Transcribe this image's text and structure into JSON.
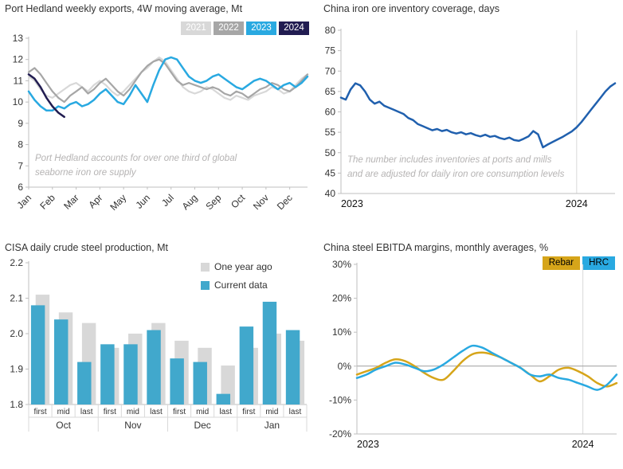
{
  "colors": {
    "blue": "#29a9e1",
    "navy": "#211c51",
    "gray_2022": "#a6a6a6",
    "light_gray": "#d8d8d8",
    "inventory_blue": "#2060ae",
    "bar_blue": "#41a8cc",
    "gold": "#d6a51a",
    "axis": "#bfbfbf",
    "grid": "#d9d9d9",
    "tick_text": "#333333"
  },
  "panels": [
    {
      "title": "Port Hedland weekly exports, 4W moving average, Mt",
      "annotation": "Port Hedland accounts for over one third of global\nseaborne iron ore supply",
      "legend": [
        {
          "label": "2021",
          "color": "#d8d8d8"
        },
        {
          "label": "2022",
          "color": "#a6a6a6"
        },
        {
          "label": "2023",
          "color": "#29a9e1"
        },
        {
          "label": "2024",
          "color": "#211c51"
        }
      ]
    },
    {
      "title": "China iron ore inventory coverage, days",
      "annotation": "The number includes inventories at ports and mills\nand are adjusted for daily iron ore consumption levels"
    },
    {
      "title": "CISA daily crude steel production, Mt",
      "legend": [
        {
          "label": "One year ago",
          "color": "#d8d8d8"
        },
        {
          "label": "Current data",
          "color": "#41a8cc"
        }
      ]
    },
    {
      "title": "China steel EBITDA margins, monthly averages, %",
      "legend": [
        {
          "label": "Rebar",
          "color": "#d6a51a"
        },
        {
          "label": "HRC",
          "color": "#29a9e1"
        }
      ]
    }
  ],
  "chart_data": [
    {
      "type": "line",
      "title": "Port Hedland weekly exports, 4W moving average, Mt",
      "ylabel": "Mt",
      "ylim": [
        6,
        13
      ],
      "yticks": [
        6,
        7,
        8,
        9,
        10,
        11,
        12,
        13
      ],
      "x_count": 48,
      "x_tick_every": 4,
      "x_tick_labels": [
        "Jan",
        "Feb",
        "Mar",
        "Apr",
        "May",
        "Jun",
        "Jul",
        "Aug",
        "Sep",
        "Oct",
        "Nov",
        "Dec"
      ],
      "series": [
        {
          "name": "2021",
          "color": "#d8d8d8",
          "lw": 2.2,
          "values": [
            11.2,
            11.0,
            10.6,
            10.3,
            10.2,
            10.4,
            10.6,
            10.8,
            10.9,
            10.7,
            10.5,
            10.8,
            11.0,
            10.8,
            10.5,
            10.3,
            10.5,
            10.8,
            11.1,
            11.4,
            11.6,
            11.9,
            12.1,
            11.9,
            11.5,
            11.1,
            10.7,
            10.5,
            10.4,
            10.5,
            10.7,
            10.6,
            10.4,
            10.2,
            10.1,
            10.3,
            10.2,
            10.1,
            10.3,
            10.4,
            10.5,
            10.7,
            10.6,
            10.4,
            10.5,
            10.8,
            11.1,
            11.3
          ]
        },
        {
          "name": "2022",
          "color": "#a6a6a6",
          "lw": 2.2,
          "values": [
            11.4,
            11.6,
            11.3,
            10.9,
            10.5,
            10.2,
            10.0,
            10.3,
            10.5,
            10.7,
            10.4,
            10.6,
            10.9,
            11.1,
            10.8,
            10.5,
            10.3,
            10.6,
            11.0,
            11.4,
            11.7,
            11.9,
            12.0,
            11.8,
            11.4,
            11.0,
            10.8,
            10.9,
            10.8,
            10.7,
            10.6,
            10.7,
            10.6,
            10.4,
            10.3,
            10.5,
            10.4,
            10.2,
            10.4,
            10.6,
            10.7,
            10.9,
            10.8,
            10.6,
            10.5,
            10.7,
            11.0,
            11.3
          ]
        },
        {
          "name": "2023",
          "color": "#29a9e1",
          "lw": 2.5,
          "values": [
            10.5,
            10.1,
            9.8,
            9.6,
            9.6,
            9.8,
            9.7,
            9.9,
            10.0,
            9.8,
            9.9,
            10.1,
            10.4,
            10.6,
            10.3,
            10.0,
            9.9,
            10.3,
            10.8,
            10.4,
            10.0,
            10.8,
            11.5,
            12.0,
            12.1,
            12.0,
            11.6,
            11.2,
            11.0,
            10.9,
            11.0,
            11.2,
            11.3,
            11.1,
            10.9,
            10.7,
            10.6,
            10.8,
            11.0,
            11.1,
            11.0,
            10.8,
            10.6,
            10.8,
            10.9,
            10.7,
            10.9,
            11.2
          ]
        },
        {
          "name": "2024",
          "color": "#211c51",
          "lw": 2.5,
          "values": [
            11.3,
            11.1,
            10.7,
            10.2,
            9.8,
            9.5,
            9.3
          ]
        }
      ]
    },
    {
      "type": "line",
      "title": "China iron ore inventory coverage, days",
      "ylabel": "days",
      "ylim": [
        40,
        80
      ],
      "yticks": [
        40,
        45,
        50,
        55,
        60,
        65,
        70,
        75,
        80
      ],
      "x_count": 58,
      "vline_pos": 0.86,
      "x_labels": [
        {
          "label": "2023",
          "pos": 0,
          "anchor": "start"
        },
        {
          "label": "2024",
          "pos": 0.86,
          "anchor": "middle"
        }
      ],
      "series": [
        {
          "name": "Inventory coverage",
          "color": "#2060ae",
          "lw": 2.5,
          "values": [
            63.5,
            63.0,
            65.5,
            67.0,
            66.5,
            65.0,
            63.0,
            62.0,
            62.5,
            61.5,
            61.0,
            60.5,
            60.0,
            59.5,
            58.5,
            58.0,
            57.0,
            56.5,
            56.0,
            55.5,
            55.8,
            55.3,
            55.6,
            55.0,
            54.7,
            55.0,
            54.5,
            54.8,
            54.3,
            54.0,
            54.4,
            53.9,
            54.1,
            53.6,
            53.3,
            53.7,
            53.1,
            52.9,
            53.4,
            54.0,
            55.3,
            54.5,
            51.3,
            52.0,
            52.6,
            53.2,
            53.8,
            54.5,
            55.2,
            56.2,
            57.5,
            59.0,
            60.5,
            62.0,
            63.5,
            65.0,
            66.2,
            67.0
          ]
        }
      ]
    },
    {
      "type": "bar",
      "title": "CISA daily crude steel production, Mt",
      "ylabel": "Mt",
      "ylim": [
        1.8,
        2.2
      ],
      "yticks": [
        1.8,
        1.9,
        2.0,
        2.1,
        2.2
      ],
      "ytick_labels": [
        "1.8",
        "1.9",
        "2.0",
        "2.1",
        "2.2"
      ],
      "categories": [
        "first",
        "mid",
        "last",
        "first",
        "mid",
        "last",
        "first",
        "mid",
        "last",
        "first",
        "mid",
        "last"
      ],
      "group_labels": [
        "Oct",
        "Nov",
        "Dec",
        "Jan"
      ],
      "series": [
        {
          "name": "One year ago",
          "color": "#d8d8d8",
          "values": [
            2.11,
            2.06,
            2.03,
            1.96,
            2.0,
            2.03,
            1.98,
            1.96,
            1.91,
            1.96,
            2.0,
            1.98
          ]
        },
        {
          "name": "Current data",
          "color": "#41a8cc",
          "values": [
            2.08,
            2.04,
            1.92,
            1.97,
            1.97,
            2.01,
            1.93,
            1.92,
            1.83,
            2.02,
            2.09,
            2.01
          ]
        }
      ]
    },
    {
      "type": "line",
      "title": "China steel EBITDA margins, monthly averages, %",
      "ylabel": "%",
      "ylim": [
        -20,
        30
      ],
      "yticks": [
        -20,
        -10,
        0,
        10,
        20,
        30
      ],
      "ytick_labels": [
        "-20%",
        "-10%",
        "0%",
        "10%",
        "20%",
        "30%"
      ],
      "x_count": 28,
      "vline_pos": 0.87,
      "zero_line": true,
      "smooth": true,
      "x_labels": [
        {
          "label": "2023",
          "pos": 0,
          "anchor": "start"
        },
        {
          "label": "2024",
          "pos": 0.87,
          "anchor": "middle"
        }
      ],
      "series": [
        {
          "name": "Rebar",
          "color": "#d6a51a",
          "lw": 2.5,
          "values": [
            -2.5,
            -1.5,
            -0.5,
            1.0,
            2.0,
            1.5,
            0.0,
            -2.0,
            -3.5,
            -4.0,
            -1.5,
            1.5,
            3.5,
            4.0,
            3.5,
            2.5,
            1.0,
            -0.5,
            -2.5,
            -4.5,
            -3.0,
            -1.0,
            -0.5,
            -1.5,
            -3.0,
            -5.0,
            -6.0,
            -5.0
          ]
        },
        {
          "name": "HRC",
          "color": "#29a9e1",
          "lw": 2.5,
          "values": [
            -3.5,
            -2.5,
            -1.0,
            0.0,
            1.0,
            0.5,
            -0.5,
            -1.5,
            -1.0,
            0.5,
            2.5,
            4.5,
            6.0,
            5.5,
            4.0,
            2.5,
            1.0,
            -0.5,
            -2.5,
            -3.0,
            -2.5,
            -3.5,
            -4.0,
            -5.0,
            -6.0,
            -7.0,
            -5.5,
            -2.5
          ]
        }
      ]
    }
  ]
}
